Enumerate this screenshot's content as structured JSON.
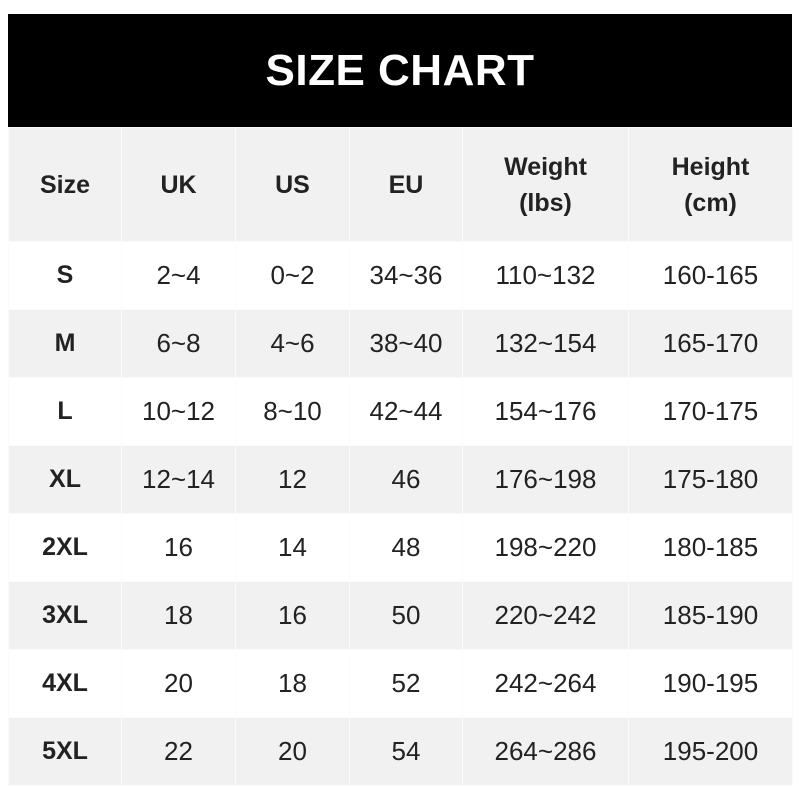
{
  "title": "SIZE CHART",
  "headers": [
    "Size",
    "UK",
    "US",
    "EU",
    "Weight\n(lbs)",
    "Height\n(cm)"
  ],
  "rows": [
    [
      "S",
      "2~4",
      "0~2",
      "34~36",
      "110~132",
      "160-165"
    ],
    [
      "M",
      "6~8",
      "4~6",
      "38~40",
      "132~154",
      "165-170"
    ],
    [
      "L",
      "10~12",
      "8~10",
      "42~44",
      "154~176",
      "170-175"
    ],
    [
      "XL",
      "12~14",
      "12",
      "46",
      "176~198",
      "175-180"
    ],
    [
      "2XL",
      "16",
      "14",
      "48",
      "198~220",
      "180-185"
    ],
    [
      "3XL",
      "18",
      "16",
      "50",
      "220~242",
      "185-190"
    ],
    [
      "4XL",
      "20",
      "18",
      "52",
      "242~264",
      "190-195"
    ],
    [
      "5XL",
      "22",
      "20",
      "54",
      "264~286",
      "195-200"
    ]
  ],
  "colors": {
    "banner": "#000000",
    "row_alt": "#f1f1f1",
    "text": "#222222"
  }
}
